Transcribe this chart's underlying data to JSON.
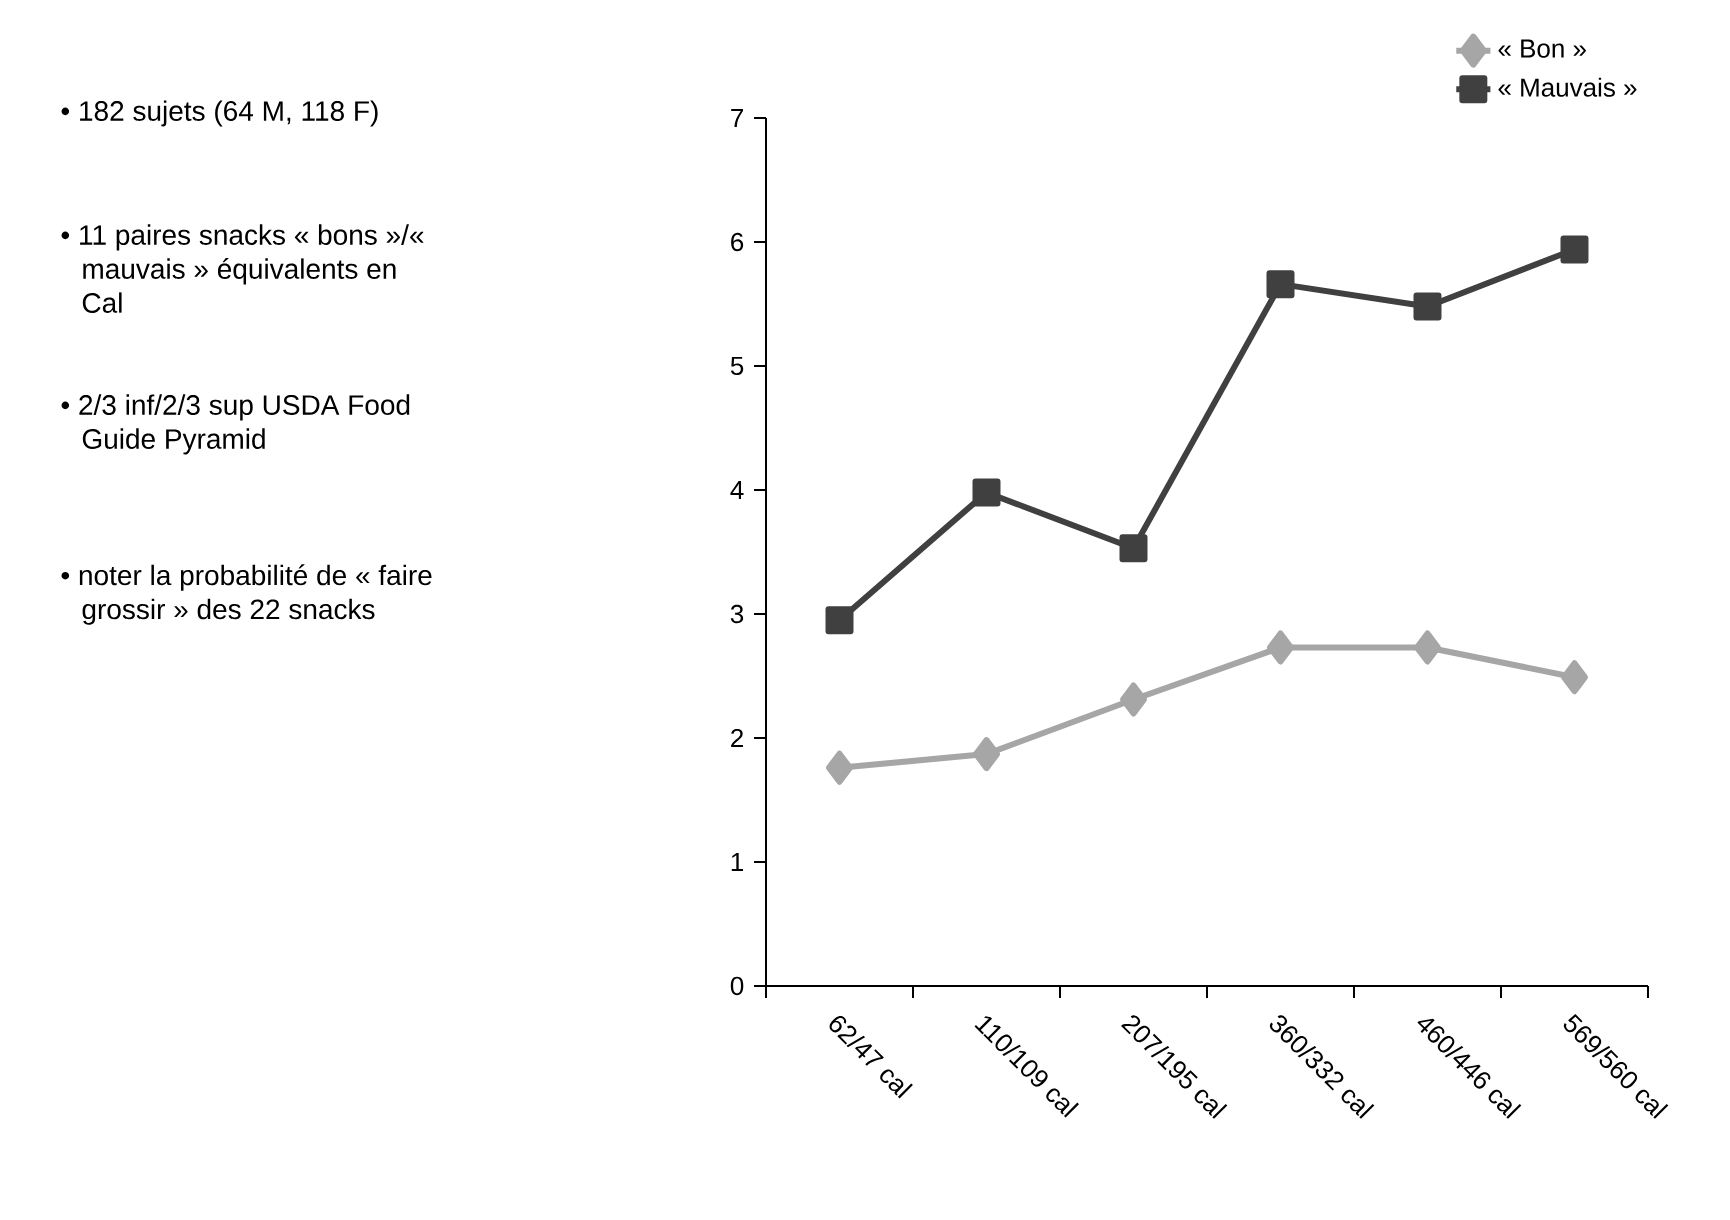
{
  "chart_data": {
    "type": "line",
    "categories": [
      "62/47 cal",
      "110/109 cal",
      "207/195 cal",
      "360/332 cal",
      "460/446 cal",
      "569/560 cal"
    ],
    "series": [
      {
        "name": "« Bon »",
        "color": "#a6a6a6",
        "marker": "diamond",
        "values": [
          1.76,
          1.87,
          2.31,
          2.73,
          2.73,
          2.49
        ]
      },
      {
        "name": "« Mauvais »",
        "color": "#404040",
        "marker": "square",
        "values": [
          2.95,
          3.98,
          3.53,
          5.66,
          5.48,
          5.94
        ]
      }
    ],
    "ylim": [
      0,
      7
    ],
    "yticks": [
      0,
      1,
      2,
      3,
      4,
      5,
      6,
      7
    ],
    "grid": false,
    "legend": "top right",
    "line_style": "solid",
    "annotations": [
      "• 182 sujets (64 M, 118 F)",
      "• 11 paires snacks « bons »/« mauvais » équivalents en Cal",
      "• 2/3 inf/2/3 sup USDA Food Guide Pyramid",
      "• noter la probabilité de « faire grossir » des 22 snacks"
    ]
  }
}
